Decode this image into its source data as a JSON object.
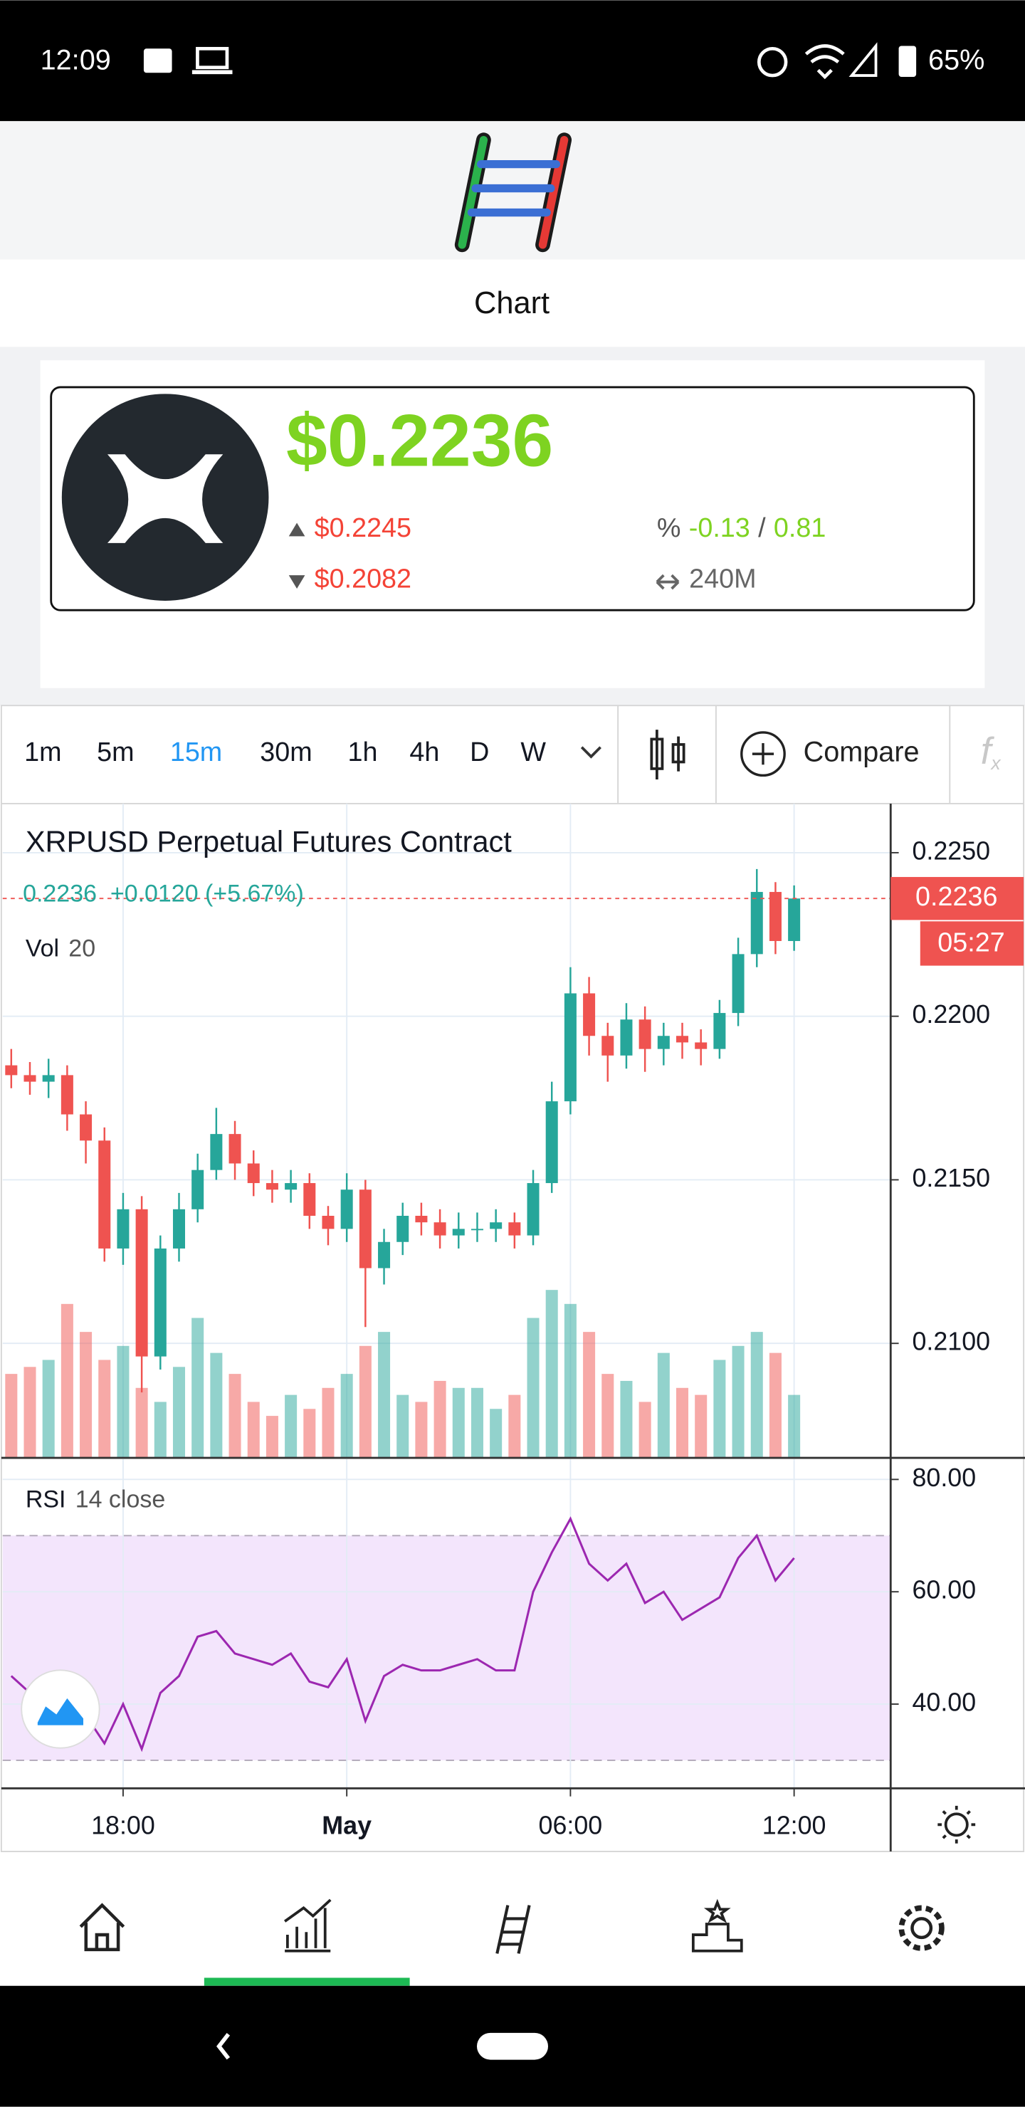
{
  "status_bar": {
    "time": "12:09",
    "battery": "65%"
  },
  "header": {
    "title": "Chart"
  },
  "ticker": {
    "price": "$0.2236",
    "high": "$0.2245",
    "low": "$0.2082",
    "change_icon": "%",
    "change": "-0.13",
    "separator": "/",
    "change_pct": "0.81",
    "volume": "240M"
  },
  "toolbar": {
    "intervals": [
      "1m",
      "5m",
      "15m",
      "30m",
      "1h",
      "4h",
      "D",
      "W"
    ],
    "active": 2,
    "compare": "Compare",
    "indicator_icon": "f",
    "indicator_sub": "x"
  },
  "chart_data": [
    {
      "type": "candlestick",
      "title": "XRPUSD Perpetual Futures Contract",
      "last_value": "0.2236",
      "change": "+0.0120 (+5.67%)",
      "volume_label": "Vol",
      "volume_length": "20",
      "price_label": "0.2236",
      "countdown": "05:27",
      "up_color": "#26a69a",
      "down_color": "#ef5350",
      "x": [
        15,
        15.5,
        16,
        16.5,
        17,
        17.5,
        18,
        18.5,
        19,
        19.5,
        20,
        20.5,
        21,
        21.5,
        22,
        22.5,
        23,
        23.5,
        24,
        24.5,
        25,
        25.5,
        26,
        26.5,
        27,
        27.5,
        28,
        28.5,
        29,
        29.5,
        30,
        30.5,
        31,
        31.5,
        32,
        32.5,
        33,
        33.5,
        34,
        34.5,
        35,
        35.5,
        36
      ],
      "open": [
        0.2185,
        0.2182,
        0.218,
        0.2182,
        0.217,
        0.2162,
        0.2129,
        0.2141,
        0.2096,
        0.2129,
        0.2141,
        0.2153,
        0.2164,
        0.2155,
        0.2149,
        0.2147,
        0.2149,
        0.2139,
        0.2135,
        0.2147,
        0.2123,
        0.2131,
        0.2139,
        0.2137,
        0.2133,
        0.2135,
        0.2135,
        0.2137,
        0.2133,
        0.2149,
        0.2174,
        0.2207,
        0.2194,
        0.2188,
        0.2199,
        0.219,
        0.2194,
        0.2192,
        0.219,
        0.2201,
        0.2219,
        0.2238,
        0.2223
      ],
      "high": [
        0.219,
        0.2186,
        0.2187,
        0.2185,
        0.2174,
        0.2166,
        0.2146,
        0.2145,
        0.2133,
        0.2146,
        0.2158,
        0.2172,
        0.2168,
        0.2159,
        0.2153,
        0.2153,
        0.2152,
        0.2142,
        0.2152,
        0.215,
        0.2135,
        0.2143,
        0.2143,
        0.2141,
        0.214,
        0.214,
        0.2141,
        0.214,
        0.2153,
        0.218,
        0.2215,
        0.2212,
        0.2198,
        0.2204,
        0.2203,
        0.2198,
        0.2198,
        0.2196,
        0.2205,
        0.2224,
        0.2245,
        0.2241,
        0.224
      ],
      "low": [
        0.2178,
        0.2176,
        0.2175,
        0.2165,
        0.2155,
        0.2125,
        0.2124,
        0.2085,
        0.2092,
        0.2125,
        0.2137,
        0.215,
        0.215,
        0.2145,
        0.2143,
        0.2143,
        0.2135,
        0.213,
        0.2131,
        0.2105,
        0.2118,
        0.2127,
        0.2133,
        0.2129,
        0.2129,
        0.2131,
        0.2131,
        0.2129,
        0.213,
        0.2146,
        0.217,
        0.2188,
        0.218,
        0.2184,
        0.2183,
        0.2185,
        0.2187,
        0.2185,
        0.2187,
        0.2197,
        0.2215,
        0.2219,
        0.222
      ],
      "close": [
        0.2182,
        0.218,
        0.2182,
        0.217,
        0.2162,
        0.2129,
        0.2141,
        0.2096,
        0.2129,
        0.2141,
        0.2153,
        0.2164,
        0.2155,
        0.2149,
        0.2147,
        0.2149,
        0.2139,
        0.2135,
        0.2147,
        0.2123,
        0.2131,
        0.2139,
        0.2137,
        0.2133,
        0.2135,
        0.2135,
        0.2137,
        0.2133,
        0.2149,
        0.2174,
        0.2207,
        0.2194,
        0.2188,
        0.2199,
        0.219,
        0.2194,
        0.2192,
        0.219,
        0.2201,
        0.2219,
        0.2238,
        0.2223,
        0.2236
      ],
      "volume": [
        60,
        65,
        70,
        110,
        90,
        70,
        80,
        50,
        40,
        65,
        100,
        75,
        60,
        40,
        30,
        45,
        35,
        50,
        60,
        80,
        90,
        45,
        40,
        55,
        50,
        50,
        35,
        45,
        100,
        120,
        110,
        90,
        60,
        55,
        40,
        75,
        50,
        45,
        70,
        80,
        90,
        75,
        45
      ],
      "xlim": [
        14.77,
        38.59
      ],
      "xticks": [
        {
          "value": 18,
          "label": "18:00"
        },
        {
          "value": 24,
          "label": "May"
        },
        {
          "value": 30,
          "label": "06:00"
        },
        {
          "value": 36,
          "label": "12:00"
        }
      ],
      "ylim": [
        0.2065,
        0.2265
      ],
      "yticks": [
        {
          "value": 0.21,
          "label": "0.2100"
        },
        {
          "value": 0.215,
          "label": "0.2150"
        },
        {
          "value": 0.22,
          "label": "0.2200"
        },
        {
          "value": 0.225,
          "label": "0.2250"
        }
      ],
      "grid": true
    },
    {
      "type": "line",
      "title": "RSI",
      "params": "14 close",
      "color": "#9c27b0",
      "band_color": "#f3e5fc",
      "values": [
        45,
        42,
        45,
        40,
        38,
        33,
        40,
        32,
        42,
        45,
        52,
        53,
        49,
        48,
        47,
        49,
        44,
        43,
        48,
        37,
        45,
        47,
        46,
        46,
        47,
        48,
        46,
        46,
        60,
        67,
        73,
        65,
        62,
        65,
        58,
        60,
        55,
        57,
        59,
        66,
        70,
        62,
        66
      ],
      "ylim": [
        25,
        83.6
      ],
      "yticks": [
        {
          "value": 40,
          "label": "40.00"
        },
        {
          "value": 60,
          "label": "60.00"
        },
        {
          "value": 80,
          "label": "80.00"
        }
      ],
      "bands": [
        30,
        70
      ]
    }
  ]
}
